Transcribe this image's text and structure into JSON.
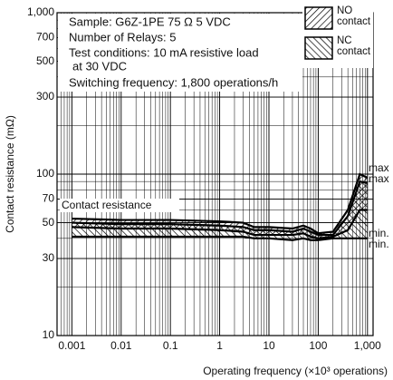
{
  "chart_data": {
    "type": "band",
    "xlabel": "Operating frequency (×10³ operations)",
    "ylabel": "Contact resistance (mΩ)",
    "xscale": "log",
    "yscale": "log",
    "grid": true,
    "xlim": [
      0.0005,
      1300
    ],
    "ylim": [
      10,
      1000
    ],
    "xticks": [
      0.001,
      0.01,
      0.1,
      1,
      10,
      100,
      {
        "value": 1000,
        "label": "1,000"
      }
    ],
    "yticks": [
      10,
      30,
      50,
      70,
      100,
      300,
      500,
      700,
      {
        "value": 1000,
        "label": "1,000"
      }
    ],
    "x": [
      0.001,
      0.01,
      0.1,
      1,
      3,
      5,
      10,
      30,
      50,
      70,
      100,
      200,
      400,
      700,
      1000
    ],
    "series": [
      {
        "name": "NO contact",
        "hatch": "forward",
        "upper": [
          53,
          52,
          52,
          51,
          50,
          47,
          47,
          46,
          48,
          46,
          43,
          44,
          60,
          100,
          95
        ],
        "lower": [
          47,
          46,
          46,
          45,
          44,
          42,
          42,
          42,
          43,
          41,
          40,
          41,
          45,
          60,
          60
        ]
      },
      {
        "name": "NC contact",
        "hatch": "backward",
        "upper": [
          50,
          49,
          49,
          48,
          47,
          45,
          45,
          44,
          46,
          44,
          42,
          42,
          55,
          90,
          88
        ],
        "lower": [
          41,
          41,
          41,
          41,
          41,
          40,
          40,
          39,
          40,
          39,
          39,
          40,
          40,
          40,
          40
        ]
      }
    ],
    "annotations": [
      "max",
      "max",
      "min.",
      "min.",
      "Contact resistance"
    ],
    "info": [
      "Sample: G6Z-1PE  75 Ω  5 VDC",
      "Number of Relays: 5",
      "Test conditions: 10 mA resistive load",
      "at  30 VDC",
      "Switching frequency: 1,800 operations/h"
    ]
  }
}
